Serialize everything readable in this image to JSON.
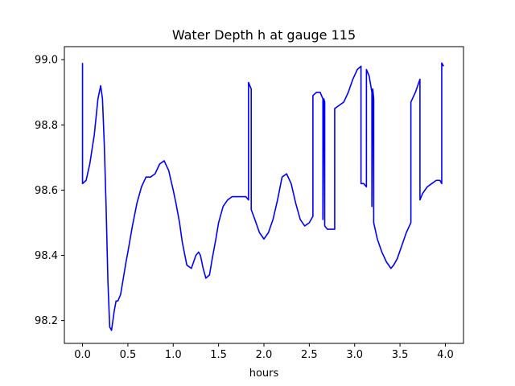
{
  "chart_data": {
    "type": "line",
    "title": "Water Depth h at gauge 115",
    "xlabel": "hours",
    "ylabel": "",
    "xlim": [
      -0.2,
      4.2
    ],
    "ylim": [
      98.13,
      99.04
    ],
    "xticks": [
      0.0,
      0.5,
      1.0,
      1.5,
      2.0,
      2.5,
      3.0,
      3.5,
      4.0
    ],
    "xtick_labels": [
      "0.0",
      "0.5",
      "1.0",
      "1.5",
      "2.0",
      "2.5",
      "3.0",
      "3.5",
      "4.0"
    ],
    "yticks": [
      98.2,
      98.4,
      98.6,
      98.8,
      99.0
    ],
    "ytick_labels": [
      "98.2",
      "98.4",
      "98.6",
      "98.8",
      "99.0"
    ],
    "grid": false,
    "series": [
      {
        "color": "#0000ff",
        "x": [
          0.0,
          0.0,
          0.0,
          0.04,
          0.08,
          0.13,
          0.17,
          0.2,
          0.22,
          0.24,
          0.26,
          0.28,
          0.3,
          0.32,
          0.35,
          0.37,
          0.39,
          0.42,
          0.45,
          0.48,
          0.5,
          0.55,
          0.6,
          0.65,
          0.7,
          0.75,
          0.8,
          0.85,
          0.9,
          0.95,
          1.0,
          1.03,
          1.07,
          1.1,
          1.15,
          1.2,
          1.25,
          1.28,
          1.3,
          1.33,
          1.36,
          1.4,
          1.43,
          1.47,
          1.5,
          1.55,
          1.6,
          1.65,
          1.7,
          1.75,
          1.8,
          1.83,
          1.83,
          1.86,
          1.86,
          1.9,
          1.95,
          2.0,
          2.05,
          2.1,
          2.15,
          2.2,
          2.25,
          2.3,
          2.35,
          2.4,
          2.45,
          2.5,
          2.54,
          2.54,
          2.58,
          2.62,
          2.65,
          2.65,
          2.66,
          2.67,
          2.67,
          2.7,
          2.78,
          2.78,
          2.83,
          2.88,
          2.93,
          2.98,
          3.03,
          3.07,
          3.07,
          3.1,
          3.13,
          3.13,
          3.16,
          3.19,
          3.19,
          3.2,
          3.21,
          3.21,
          3.25,
          3.3,
          3.35,
          3.4,
          3.43,
          3.47,
          3.52,
          3.57,
          3.62,
          3.62,
          3.67,
          3.72,
          3.72,
          3.75,
          3.8,
          3.85,
          3.9,
          3.94,
          3.96,
          3.96,
          3.98
        ],
        "y": [
          98.99,
          98.99,
          98.62,
          98.63,
          98.68,
          98.77,
          98.88,
          98.92,
          98.88,
          98.74,
          98.55,
          98.32,
          98.18,
          98.17,
          98.23,
          98.26,
          98.26,
          98.28,
          98.33,
          98.38,
          98.41,
          98.49,
          98.56,
          98.61,
          98.64,
          98.64,
          98.65,
          98.68,
          98.69,
          98.66,
          98.6,
          98.56,
          98.5,
          98.44,
          98.37,
          98.36,
          98.4,
          98.41,
          98.4,
          98.36,
          98.33,
          98.34,
          98.39,
          98.45,
          98.5,
          98.55,
          98.57,
          98.58,
          98.58,
          98.58,
          98.58,
          98.57,
          98.93,
          98.91,
          98.54,
          98.51,
          98.47,
          98.45,
          98.47,
          98.51,
          98.57,
          98.64,
          98.65,
          98.62,
          98.56,
          98.51,
          98.49,
          98.5,
          98.52,
          98.89,
          98.9,
          98.9,
          98.88,
          98.51,
          98.88,
          98.87,
          98.49,
          98.48,
          98.48,
          98.85,
          98.86,
          98.87,
          98.9,
          98.94,
          98.97,
          98.98,
          98.62,
          98.62,
          98.61,
          98.97,
          98.95,
          98.9,
          98.55,
          98.91,
          98.88,
          98.5,
          98.45,
          98.41,
          98.38,
          98.36,
          98.37,
          98.39,
          98.43,
          98.47,
          98.5,
          98.87,
          98.9,
          98.94,
          98.57,
          98.59,
          98.61,
          98.62,
          98.63,
          98.63,
          98.62,
          98.99,
          98.98
        ]
      }
    ]
  }
}
